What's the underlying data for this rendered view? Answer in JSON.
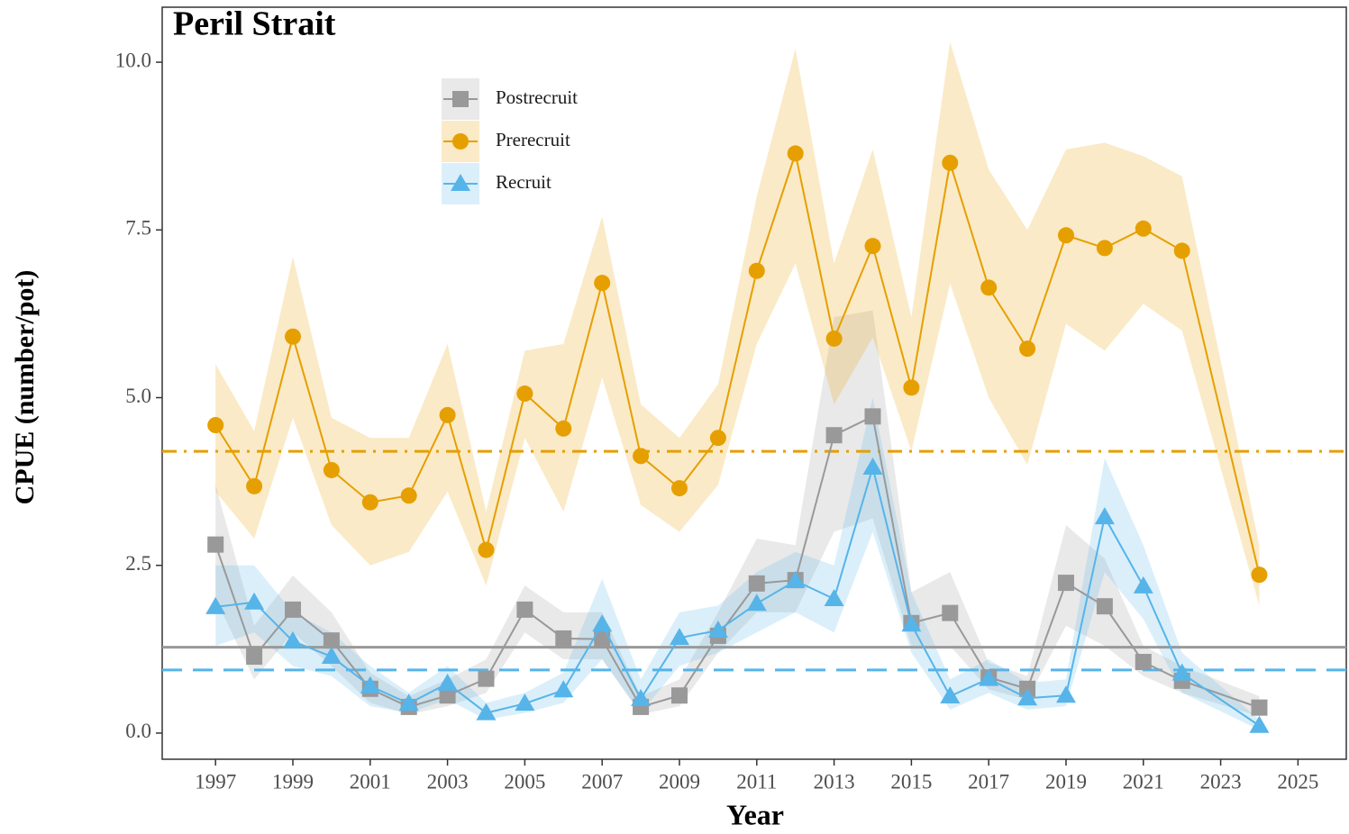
{
  "chart_data": {
    "type": "line",
    "title": "Peril Strait",
    "x_label": "Year",
    "y_label": "CPUE (number/pot)",
    "x": [
      1997,
      1998,
      1999,
      2000,
      2001,
      2002,
      2003,
      2004,
      2005,
      2006,
      2007,
      2008,
      2009,
      2010,
      2011,
      2012,
      2013,
      2014,
      2015,
      2016,
      2017,
      2018,
      2019,
      2020,
      2021,
      2022,
      2024
    ],
    "series": [
      {
        "name": "Postrecruit",
        "color": "#999999",
        "marker": "square",
        "mean": 1.28,
        "mean_style": "solid",
        "values": [
          2.81,
          1.14,
          1.84,
          1.38,
          0.66,
          0.39,
          0.56,
          0.81,
          1.84,
          1.41,
          1.4,
          0.39,
          0.56,
          1.45,
          2.23,
          2.28,
          4.44,
          4.72,
          1.64,
          1.79,
          0.83,
          0.66,
          2.24,
          1.89,
          1.06,
          0.78,
          0.38
        ],
        "lower": [
          2.0,
          0.8,
          1.5,
          1.0,
          0.45,
          0.28,
          0.4,
          0.6,
          1.5,
          1.1,
          1.1,
          0.28,
          0.4,
          1.2,
          1.8,
          1.8,
          3.0,
          3.2,
          1.3,
          1.3,
          0.65,
          0.5,
          1.6,
          1.3,
          0.85,
          0.6,
          0.25
        ],
        "upper": [
          3.7,
          1.6,
          2.35,
          1.8,
          0.9,
          0.55,
          0.8,
          1.1,
          2.2,
          1.8,
          1.8,
          0.55,
          0.8,
          1.8,
          2.9,
          2.8,
          6.2,
          6.3,
          2.1,
          2.4,
          1.05,
          0.85,
          3.1,
          2.6,
          1.3,
          1.0,
          0.55
        ]
      },
      {
        "name": "Prerecruit",
        "color": "#E69F00",
        "marker": "circle",
        "mean": 4.2,
        "mean_style": "dashdot",
        "values": [
          4.59,
          3.68,
          5.91,
          3.92,
          3.44,
          3.54,
          4.74,
          2.73,
          5.06,
          4.54,
          6.71,
          4.13,
          3.65,
          4.4,
          6.89,
          8.64,
          5.88,
          7.26,
          5.15,
          8.5,
          6.64,
          5.73,
          7.42,
          7.23,
          7.52,
          7.19,
          2.36
        ],
        "lower": [
          3.6,
          2.9,
          4.7,
          3.1,
          2.5,
          2.7,
          3.6,
          2.2,
          4.4,
          3.3,
          5.3,
          3.4,
          3.0,
          3.7,
          5.8,
          7.0,
          4.9,
          5.9,
          4.2,
          6.7,
          5.0,
          4.0,
          6.1,
          5.7,
          6.4,
          6.0,
          1.9
        ],
        "upper": [
          5.5,
          4.5,
          7.1,
          4.7,
          4.4,
          4.4,
          5.8,
          3.3,
          5.7,
          5.8,
          7.7,
          4.9,
          4.4,
          5.2,
          8.0,
          10.2,
          7.0,
          8.7,
          6.2,
          10.3,
          8.4,
          7.5,
          8.7,
          8.8,
          8.6,
          8.3,
          2.8
        ]
      },
      {
        "name": "Recruit",
        "color": "#56B4E9",
        "marker": "triangle",
        "mean": 0.94,
        "mean_style": "dashed",
        "values": [
          1.88,
          1.95,
          1.37,
          1.14,
          0.7,
          0.44,
          0.74,
          0.3,
          0.44,
          0.64,
          1.62,
          0.51,
          1.42,
          1.53,
          1.93,
          2.27,
          2.0,
          3.96,
          1.62,
          0.55,
          0.81,
          0.52,
          0.56,
          3.22,
          2.19,
          0.89,
          0.11
        ],
        "lower": [
          1.3,
          1.5,
          1.0,
          0.85,
          0.4,
          0.3,
          0.5,
          0.2,
          0.3,
          0.45,
          1.1,
          0.3,
          1.0,
          1.2,
          1.5,
          1.8,
          1.5,
          3.0,
          1.2,
          0.35,
          0.6,
          0.35,
          0.4,
          2.4,
          1.7,
          0.6,
          0.05
        ],
        "upper": [
          2.5,
          2.5,
          1.8,
          1.5,
          1.0,
          0.6,
          1.0,
          0.45,
          0.6,
          0.9,
          2.3,
          0.8,
          1.8,
          1.9,
          2.4,
          2.7,
          2.5,
          5.0,
          2.1,
          0.8,
          1.1,
          0.75,
          0.8,
          4.1,
          2.8,
          1.2,
          0.2
        ]
      }
    ],
    "xlim": [
      1995.62,
      2026.25
    ],
    "ylim": [
      -0.39,
      10.82
    ],
    "xticks": [
      1997,
      1999,
      2001,
      2003,
      2005,
      2007,
      2009,
      2011,
      2013,
      2015,
      2017,
      2019,
      2021,
      2023,
      2025
    ],
    "yticks": [
      {
        "value": 0,
        "label": "0.0"
      },
      {
        "value": 2.5,
        "label": "2.5"
      },
      {
        "value": 5,
        "label": "5.0"
      },
      {
        "value": 7.5,
        "label": "7.5"
      },
      {
        "value": 10,
        "label": "10.0"
      }
    ],
    "grid": false,
    "legend": "upper-left"
  }
}
